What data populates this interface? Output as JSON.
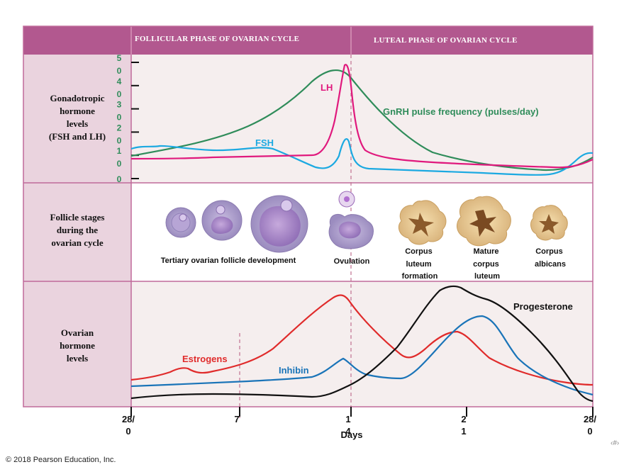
{
  "header": {
    "follicular_phase": "FOLLICULAR PHASE OF OVARIAN CYCLE",
    "luteal_phase": "LUTEAL PHASE OF OVARIAN CYCLE"
  },
  "rows": {
    "gonadotropic_label": [
      "Gonadotropic",
      "hormone",
      "levels",
      "(FSH and LH)"
    ],
    "follicle_label": [
      "Follicle stages",
      "during the",
      "ovarian cycle"
    ],
    "ovarian_label": [
      "Ovarian",
      "hormone",
      "levels"
    ]
  },
  "gonadotropic_panel": {
    "y_axis_ticks": [
      {
        "value": 0,
        "text": "0"
      },
      {
        "value": 10,
        "text": "1 0"
      },
      {
        "value": 20,
        "text": "2 0"
      },
      {
        "value": 30,
        "text": "3 0"
      },
      {
        "value": 40,
        "text": "4 0"
      },
      {
        "value": 50,
        "text": "5 0"
      }
    ],
    "curves": {
      "lh": {
        "label": "LH",
        "color": "#e0197d"
      },
      "fsh": {
        "label": "FSH",
        "color": "#1ba9e1"
      },
      "gnrh": {
        "label": "GnRH pulse frequency (pulses/day)",
        "color": "#2f8c5a"
      }
    }
  },
  "follicle_panel": {
    "captions": {
      "tertiary": "Tertiary ovarian follicle development",
      "ovulation": "Ovulation",
      "cl_formation": [
        "Corpus",
        "luteum",
        "formation"
      ],
      "mature_cl": [
        "Mature",
        "corpus",
        "luteum"
      ],
      "albicans": [
        "Corpus",
        "albicans"
      ]
    }
  },
  "ovarian_panel": {
    "curves": {
      "estrogens": {
        "label": "Estrogens",
        "color": "#e02b2b"
      },
      "inhibin": {
        "label": "Inhibin",
        "color": "#1a74b8"
      },
      "progesterone": {
        "label": "Progesterone",
        "color": "#111111"
      }
    }
  },
  "x_axis": {
    "title": "Days",
    "ticks": [
      {
        "day": 0,
        "line1": "28/",
        "line2": "0"
      },
      {
        "day": 7,
        "line1": "7",
        "line2": ""
      },
      {
        "day": 14,
        "line1": "1",
        "line2": "4"
      },
      {
        "day": 21,
        "line1": "2",
        "line2": "1"
      },
      {
        "day": 28,
        "line1": "28/",
        "line2": "0"
      }
    ]
  },
  "colors": {
    "header_bar": "#b2588f",
    "label_column": "#ead3de",
    "panel_bg": "#f5eeee",
    "border": "#c06a9a"
  },
  "footer": {
    "copyright": "© 2018 Pearson Education, Inc.",
    "page_marker": "‹#›"
  }
}
